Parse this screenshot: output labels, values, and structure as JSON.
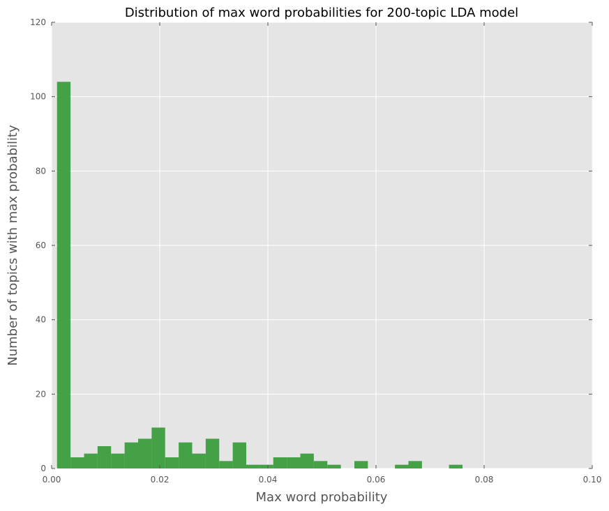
{
  "chart_data": {
    "type": "bar",
    "title": "Distribution of max word probabilities for 200-topic LDA model",
    "xlabel": "Max word probability",
    "ylabel": "Number of topics with max probability",
    "xlim": [
      0.0,
      0.1
    ],
    "ylim": [
      0,
      120
    ],
    "xticks": [
      "0.00",
      "0.02",
      "0.04",
      "0.06",
      "0.08",
      "0.10"
    ],
    "yticks": [
      "0",
      "20",
      "40",
      "60",
      "80",
      "100",
      "120"
    ],
    "grid": true,
    "bin_width": 0.0025,
    "bin_start": 0.001,
    "values": [
      104,
      3,
      4,
      6,
      4,
      7,
      8,
      11,
      3,
      7,
      4,
      8,
      2,
      7,
      1,
      1,
      3,
      3,
      4,
      2,
      1,
      0,
      2,
      0,
      0,
      1,
      2,
      0,
      0,
      1
    ],
    "colors": {
      "bar": "#339933",
      "plot_bg": "#e5e5e5",
      "grid": "#ffffff",
      "text": "#555555"
    }
  }
}
